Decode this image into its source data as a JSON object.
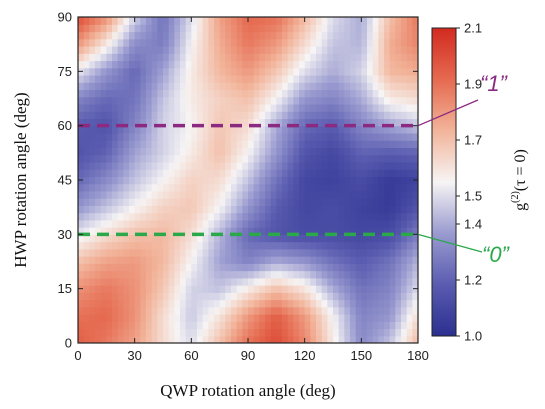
{
  "chart_data": {
    "type": "heatmap",
    "xlabel": "QWP rotation angle (deg)",
    "ylabel": "HWP rotation angle (deg)",
    "xlim": [
      0,
      180
    ],
    "ylim": [
      0,
      90
    ],
    "xticks": [
      "0",
      "30",
      "60",
      "90",
      "120",
      "150",
      "180"
    ],
    "yticks": [
      "0",
      "15",
      "30",
      "45",
      "60",
      "75",
      "90"
    ],
    "colorbar": {
      "title": "g(2)(τ = 0)",
      "title_main": "g",
      "title_sup": "(2)",
      "title_rest": "(τ = 0)",
      "range": [
        1.0,
        2.1
      ],
      "ticks": [
        "1.0",
        "1.2",
        "1.4",
        "1.5",
        "1.7",
        "1.9",
        "2.1"
      ],
      "tick_values": [
        1.0,
        1.2,
        1.4,
        1.5,
        1.7,
        1.9,
        2.1
      ],
      "colormap": [
        "#2b2f8f",
        "#5a5cb0",
        "#9a9bd0",
        "#f6f4f4",
        "#f2b49a",
        "#e56a50",
        "#d22a1f"
      ]
    },
    "x": [
      0,
      15,
      30,
      45,
      60,
      75,
      90,
      105,
      120,
      135,
      150,
      165,
      180
    ],
    "y": [
      0,
      7.5,
      15,
      22.5,
      30,
      37.5,
      45,
      52.5,
      60,
      67.5,
      75,
      82.5,
      90
    ],
    "z": [
      [
        1.95,
        1.88,
        1.78,
        1.62,
        1.5,
        1.7,
        1.9,
        2.0,
        1.85,
        1.58,
        1.32,
        1.45,
        1.72
      ],
      [
        1.9,
        1.92,
        1.82,
        1.62,
        1.46,
        1.6,
        1.8,
        1.95,
        1.8,
        1.55,
        1.3,
        1.35,
        1.62
      ],
      [
        1.82,
        1.88,
        1.82,
        1.68,
        1.48,
        1.45,
        1.58,
        1.7,
        1.6,
        1.4,
        1.25,
        1.3,
        1.5
      ],
      [
        1.7,
        1.78,
        1.8,
        1.72,
        1.55,
        1.38,
        1.3,
        1.4,
        1.35,
        1.25,
        1.18,
        1.25,
        1.42
      ],
      [
        1.52,
        1.62,
        1.7,
        1.72,
        1.62,
        1.42,
        1.22,
        1.15,
        1.12,
        1.12,
        1.1,
        1.12,
        1.28
      ],
      [
        1.35,
        1.45,
        1.55,
        1.65,
        1.68,
        1.55,
        1.35,
        1.18,
        1.1,
        1.12,
        1.08,
        1.05,
        1.15
      ],
      [
        1.22,
        1.32,
        1.45,
        1.55,
        1.65,
        1.62,
        1.45,
        1.25,
        1.1,
        1.08,
        1.12,
        1.05,
        1.08
      ],
      [
        1.15,
        1.2,
        1.38,
        1.48,
        1.58,
        1.7,
        1.55,
        1.35,
        1.15,
        1.1,
        1.2,
        1.18,
        1.2
      ],
      [
        1.18,
        1.15,
        1.3,
        1.48,
        1.55,
        1.68,
        1.62,
        1.4,
        1.22,
        1.18,
        1.3,
        1.38,
        1.45
      ],
      [
        1.3,
        1.22,
        1.25,
        1.45,
        1.58,
        1.65,
        1.7,
        1.55,
        1.35,
        1.3,
        1.4,
        1.58,
        1.62
      ],
      [
        1.52,
        1.35,
        1.22,
        1.38,
        1.58,
        1.72,
        1.8,
        1.68,
        1.5,
        1.4,
        1.48,
        1.72,
        1.75
      ],
      [
        1.8,
        1.58,
        1.32,
        1.28,
        1.55,
        1.75,
        1.88,
        1.8,
        1.62,
        1.45,
        1.42,
        1.75,
        1.85
      ],
      [
        2.0,
        1.82,
        1.48,
        1.25,
        1.5,
        1.78,
        1.92,
        1.9,
        1.72,
        1.5,
        1.4,
        1.7,
        1.88
      ]
    ],
    "lines": [
      {
        "label": "“1”",
        "y": 60,
        "color": "#8c2a82"
      },
      {
        "label": "“0”",
        "y": 30,
        "color": "#2aa84a"
      }
    ]
  }
}
